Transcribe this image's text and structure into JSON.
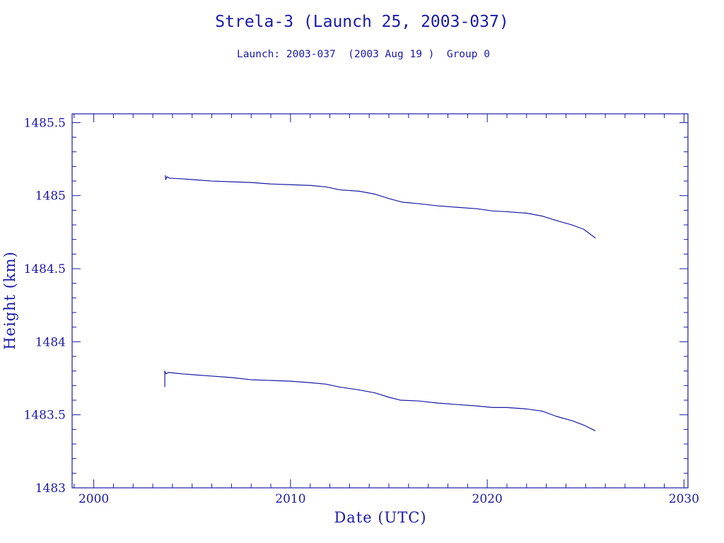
{
  "colors": {
    "ink": "#1a1aa6",
    "background": "#ffffff"
  },
  "chart_data": {
    "type": "line",
    "title": "Strela-3 (Launch 25, 2003-037)",
    "subtitle": "Launch: 2003-037  (2003 Aug 19 )  Group 0",
    "xlabel": "Date (UTC)",
    "ylabel": "Height (km)",
    "xlim": [
      1998.9,
      2030.2
    ],
    "ylim": [
      1483,
      1485.56
    ],
    "x_ticks": [
      2000,
      2010,
      2020,
      2030
    ],
    "x_tick_labels": [
      "2000",
      "2010",
      "2020",
      "2030"
    ],
    "y_ticks": [
      1483,
      1483.5,
      1484,
      1484.5,
      1485,
      1485.5
    ],
    "y_tick_labels": [
      "1483",
      "1483.5",
      "1484",
      "1484.5",
      "1485",
      "1485.5"
    ],
    "x_minor_step": 1,
    "y_minor_step": 0.1,
    "grid": false,
    "series": [
      {
        "points": [
          [
            2003.63,
            1485.14
          ],
          [
            2003.66,
            1485.11
          ],
          [
            2003.72,
            1485.13
          ],
          [
            2003.85,
            1485.12
          ],
          [
            2004.5,
            1485.115
          ],
          [
            2005,
            1485.11
          ],
          [
            2006,
            1485.1
          ],
          [
            2007,
            1485.095
          ],
          [
            2008,
            1485.09
          ],
          [
            2009,
            1485.08
          ],
          [
            2010,
            1485.075
          ],
          [
            2011,
            1485.07
          ],
          [
            2011.8,
            1485.06
          ],
          [
            2012.5,
            1485.04
          ],
          [
            2013.5,
            1485.03
          ],
          [
            2014.3,
            1485.01
          ],
          [
            2015,
            1484.98
          ],
          [
            2015.7,
            1484.955
          ],
          [
            2016.5,
            1484.945
          ],
          [
            2017.5,
            1484.93
          ],
          [
            2018.5,
            1484.92
          ],
          [
            2019.5,
            1484.91
          ],
          [
            2020.3,
            1484.895
          ],
          [
            2021,
            1484.89
          ],
          [
            2022,
            1484.88
          ],
          [
            2022.8,
            1484.86
          ],
          [
            2023.5,
            1484.83
          ],
          [
            2024.3,
            1484.8
          ],
          [
            2024.9,
            1484.77
          ],
          [
            2025.5,
            1484.71
          ]
        ]
      },
      {
        "points": [
          [
            2003.61,
            1483.69
          ],
          [
            2003.61,
            1483.8
          ],
          [
            2003.67,
            1483.78
          ],
          [
            2003.8,
            1483.79
          ],
          [
            2004.5,
            1483.78
          ],
          [
            2005,
            1483.775
          ],
          [
            2006,
            1483.765
          ],
          [
            2007,
            1483.755
          ],
          [
            2008,
            1483.74
          ],
          [
            2009,
            1483.735
          ],
          [
            2010,
            1483.73
          ],
          [
            2011,
            1483.72
          ],
          [
            2011.8,
            1483.71
          ],
          [
            2012.5,
            1483.69
          ],
          [
            2013.5,
            1483.67
          ],
          [
            2014.3,
            1483.65
          ],
          [
            2015,
            1483.62
          ],
          [
            2015.6,
            1483.6
          ],
          [
            2016.5,
            1483.595
          ],
          [
            2017.5,
            1483.58
          ],
          [
            2018.5,
            1483.57
          ],
          [
            2019.5,
            1483.56
          ],
          [
            2020.3,
            1483.55
          ],
          [
            2021,
            1483.55
          ],
          [
            2022,
            1483.54
          ],
          [
            2022.8,
            1483.525
          ],
          [
            2023.5,
            1483.49
          ],
          [
            2024.3,
            1483.46
          ],
          [
            2024.9,
            1483.43
          ],
          [
            2025.5,
            1483.39
          ]
        ]
      }
    ]
  }
}
